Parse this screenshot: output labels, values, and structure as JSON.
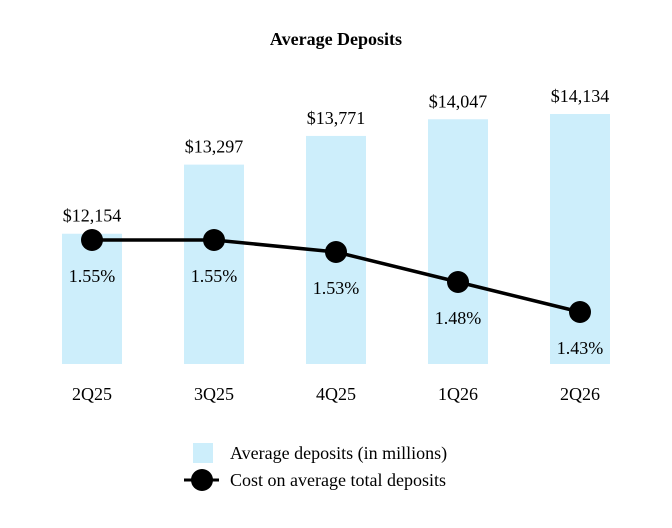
{
  "chart_data": {
    "type": "bar",
    "title": "Average Deposits",
    "categories": [
      "2Q25",
      "3Q25",
      "4Q25",
      "1Q26",
      "2Q26"
    ],
    "series": [
      {
        "name": "Average deposits (in millions)",
        "type": "bar",
        "values": [
          12154,
          13297,
          13771,
          14047,
          14134
        ],
        "labels": [
          "$12,154",
          "$13,297",
          "$13,771",
          "$14,047",
          "$14,134"
        ],
        "color": "#cdeefb"
      },
      {
        "name": "Cost on average total deposits",
        "type": "line",
        "values": [
          1.55,
          1.55,
          1.53,
          1.48,
          1.43
        ],
        "labels": [
          "1.55%",
          "1.55%",
          "1.53%",
          "1.48%",
          "1.43%"
        ],
        "color": "#000000"
      }
    ],
    "grid": false,
    "legend_position": "bottom"
  }
}
